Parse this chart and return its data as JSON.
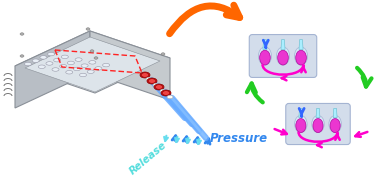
{
  "bg_color": "#ffffff",
  "pressure_text": "Pressure",
  "release_text": "Release",
  "pressure_color": "#3388ee",
  "release_color": "#55dddd",
  "orange_arrow_color": "#ff6600",
  "green_arrow_color": "#22cc22",
  "magenta_color": "#ff00cc",
  "magenta_dark": "#cc00aa",
  "device_top_color": "#d8dde2",
  "device_top_light": "#eaecee",
  "device_side_color": "#b8bec5",
  "device_front_color": "#c5cace",
  "device_edge_color": "#8a9098",
  "red_port_color": "#cc1111",
  "red_port_light": "#ee4444",
  "chip_body_color": "#ccd8e8",
  "chip_body_light": "#e0eaf5",
  "chip_edge_color": "#99aacc",
  "chip_magenta": "#ee22cc",
  "chip_magenta_dark": "#aa0099",
  "chip_cyan_tube": "#aaeeff",
  "chip_blue_arrow": "#3366ff",
  "tube_blue": "#66aaff",
  "tube_cyan": "#66ddee",
  "well_color": "#e8eef5",
  "well_edge": "#999aaa",
  "screw_color": "#aaaaaa"
}
